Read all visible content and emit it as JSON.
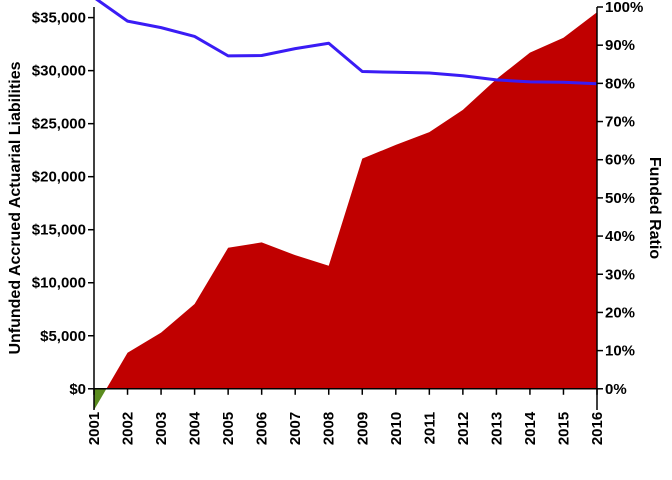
{
  "chart_data": {
    "type": "area",
    "title": "",
    "xlabel": "",
    "ylabel": "Unfunded Accrued Actuarial Liabilities",
    "y2label": "Funded Ratio",
    "ylim": [
      -2000,
      36000
    ],
    "y2lim": [
      -5.556,
      100
    ],
    "categories": [
      "2001",
      "2002",
      "2003",
      "2004",
      "2005",
      "2006",
      "2007",
      "2008",
      "2009",
      "2010",
      "2011",
      "2012",
      "2013",
      "2014",
      "2015",
      "2016"
    ],
    "y_ticks": [
      0,
      5000,
      10000,
      15000,
      20000,
      25000,
      30000,
      35000
    ],
    "y_tick_labels": [
      "$0",
      "$5,000",
      "$10,000",
      "$15,000",
      "$20,000",
      "$25,000",
      "$30,000",
      "$35,000"
    ],
    "y2_ticks": [
      0,
      10,
      20,
      30,
      40,
      50,
      60,
      70,
      80,
      90,
      100
    ],
    "y2_tick_labels": [
      "0%",
      "10%",
      "20%",
      "30%",
      "40%",
      "50%",
      "60%",
      "70%",
      "80%",
      "90%",
      "100%"
    ],
    "series": [
      {
        "name": "Unfunded Accrued Actuarial Liabilities",
        "type": "area",
        "axis": "left",
        "values": [
          -2000,
          3400,
          5300,
          8000,
          13300,
          13800,
          12600,
          11600,
          21700,
          23000,
          24200,
          26300,
          29200,
          31700,
          33100,
          35500
        ],
        "color_positive": "#c00000",
        "color_negative": "#5b8c1f"
      },
      {
        "name": "Funded Ratio",
        "type": "line",
        "axis": "right",
        "values": [
          102.5,
          96.3,
          94.6,
          92.3,
          87.2,
          87.3,
          89.1,
          90.5,
          83.1,
          82.9,
          82.7,
          82.0,
          80.9,
          80.4,
          80.3,
          79.9
        ],
        "color": "#3a1cf5"
      }
    ]
  }
}
